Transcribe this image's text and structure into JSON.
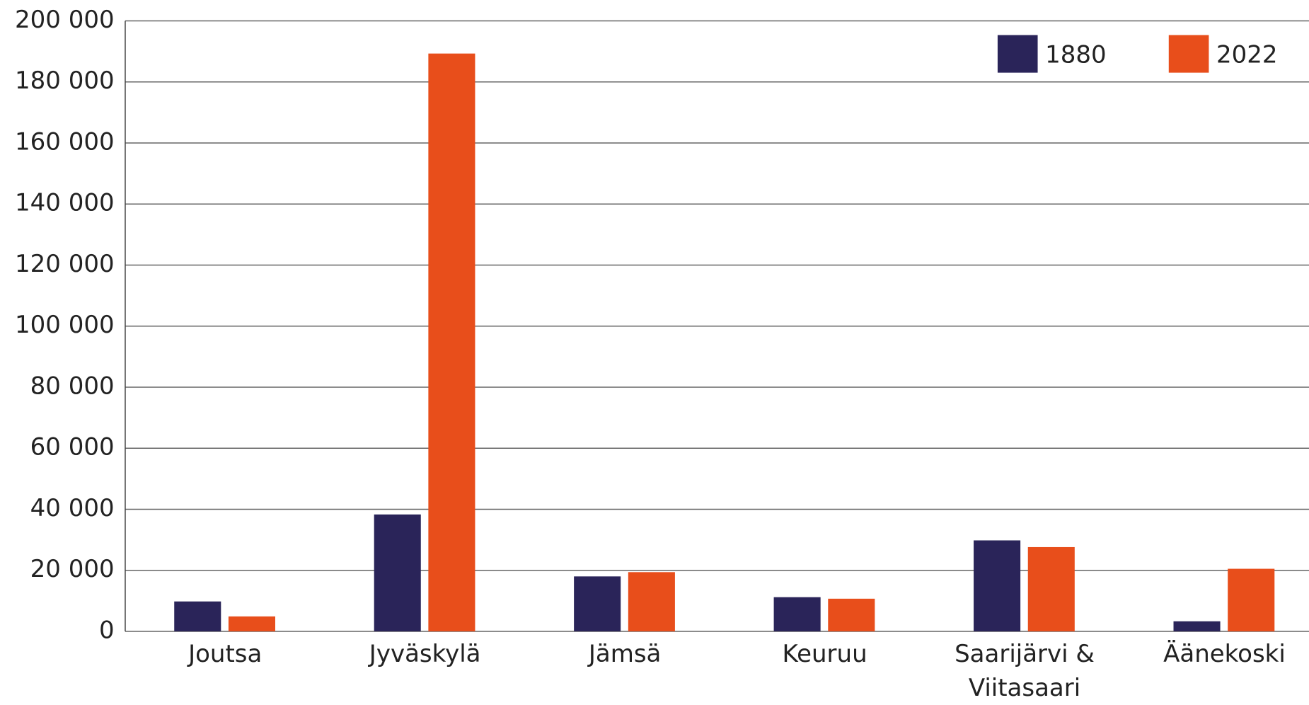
{
  "chart_data": {
    "type": "bar",
    "categories": [
      "Joutsa",
      "Jyväskylä",
      "Jämsä",
      "Keuruu",
      "Saarijärvi & Viitasaari",
      "Äänekoski"
    ],
    "series": [
      {
        "name": "1880",
        "color": "#2a2459",
        "values": [
          9800,
          38300,
          18000,
          11200,
          29800,
          3300
        ]
      },
      {
        "name": "2022",
        "color": "#e84e1b",
        "values": [
          4900,
          189300,
          19400,
          10700,
          27600,
          20500
        ]
      }
    ],
    "ylim": [
      0,
      200000
    ],
    "yticks": [
      0,
      {
        "value": 20000,
        "label": "20 000"
      },
      {
        "value": 40000,
        "label": "40 000"
      },
      {
        "value": 60000,
        "label": "60 000"
      },
      {
        "value": 80000,
        "label": "80 000"
      },
      {
        "value": 100000,
        "label": "100 000"
      },
      {
        "value": 120000,
        "label": "120 000"
      },
      {
        "value": 140000,
        "label": "140 000"
      },
      {
        "value": 160000,
        "label": "160 000"
      },
      {
        "value": 180000,
        "label": "180 000"
      },
      {
        "value": 200000,
        "label": "200 000"
      }
    ],
    "grid": true,
    "legend": "top-right"
  }
}
